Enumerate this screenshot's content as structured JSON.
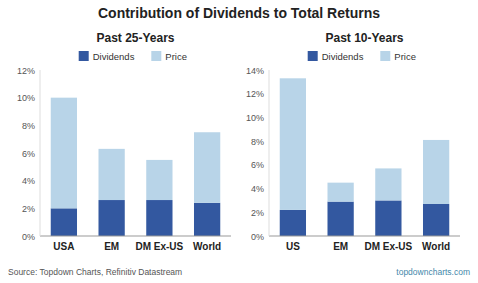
{
  "chart_data": [
    {
      "type": "bar",
      "stacked": true,
      "title": "Contribution of Dividends to Total Returns",
      "subtitle": "Past 25-Years",
      "categories": [
        "USA",
        "EM",
        "DM Ex-US",
        "World"
      ],
      "series": [
        {
          "name": "Dividends",
          "color": "#3358a0",
          "values": [
            2.0,
            2.6,
            2.6,
            2.4
          ]
        },
        {
          "name": "Price",
          "color": "#b8d4e8",
          "values": [
            8.0,
            3.7,
            2.9,
            5.1
          ]
        }
      ],
      "ylim": [
        0,
        12
      ],
      "yticks": [
        {
          "value": 0,
          "label": "0%"
        },
        {
          "value": 2,
          "label": "2%"
        },
        {
          "value": 4,
          "label": "4%"
        },
        {
          "value": 6,
          "label": "6%"
        },
        {
          "value": 8,
          "label": "8%"
        },
        {
          "value": 10,
          "label": "10%"
        },
        {
          "value": 12,
          "label": "12%"
        }
      ],
      "grid": false,
      "legend": "top",
      "annotations": [
        "Source: Topdown Charts, Refinitiv Datastream"
      ]
    },
    {
      "type": "bar",
      "stacked": true,
      "subtitle": "Past 10-Years",
      "categories": [
        "US",
        "EM",
        "DM Ex-US",
        "World"
      ],
      "series": [
        {
          "name": "Dividends",
          "color": "#3358a0",
          "values": [
            2.2,
            2.9,
            3.0,
            2.7
          ]
        },
        {
          "name": "Price",
          "color": "#b8d4e8",
          "values": [
            11.1,
            1.6,
            2.7,
            5.4
          ]
        }
      ],
      "ylim": [
        0,
        14
      ],
      "yticks": [
        {
          "value": 0,
          "label": "0%"
        },
        {
          "value": 2,
          "label": "2%"
        },
        {
          "value": 4,
          "label": "4%"
        },
        {
          "value": 6,
          "label": "6%"
        },
        {
          "value": 8,
          "label": "8%"
        },
        {
          "value": 10,
          "label": "10%"
        },
        {
          "value": 12,
          "label": "12%"
        },
        {
          "value": 14,
          "label": "14%"
        }
      ],
      "grid": false,
      "legend": "top",
      "annotations": [
        "topdowncharts.com"
      ]
    }
  ]
}
